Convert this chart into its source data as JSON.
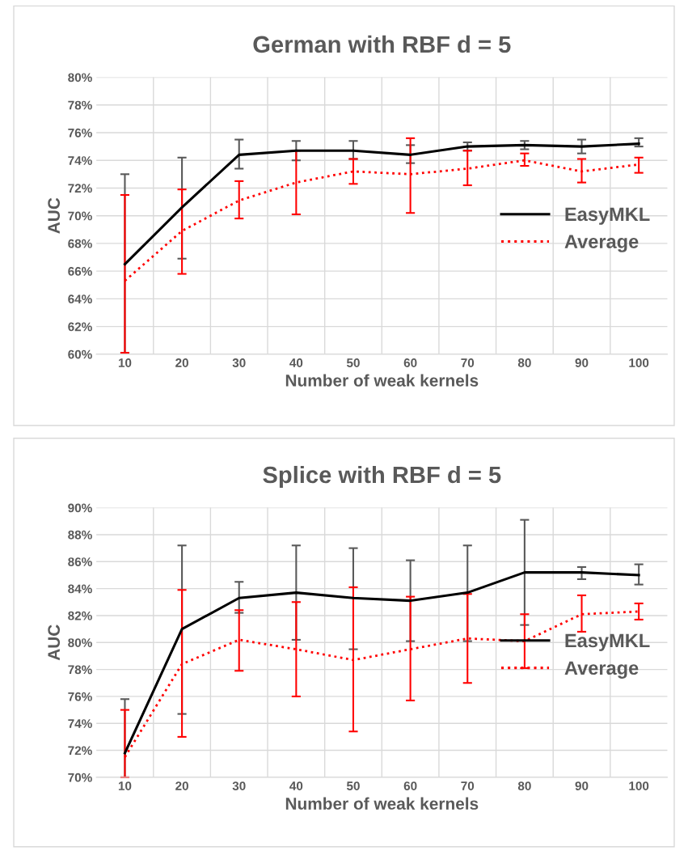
{
  "chart_data": [
    {
      "type": "line",
      "title": "German with RBF d = 5",
      "xlabel": "Number of weak kernels",
      "ylabel": "AUC",
      "categories": [
        "10",
        "20",
        "30",
        "40",
        "50",
        "60",
        "70",
        "80",
        "90",
        "100"
      ],
      "ylim": [
        60,
        80
      ],
      "yticks": [
        {
          "value": 60,
          "label": "60%"
        },
        {
          "value": 62,
          "label": "62%"
        },
        {
          "value": 64,
          "label": "64%"
        },
        {
          "value": 66,
          "label": "66%"
        },
        {
          "value": 68,
          "label": "68%"
        },
        {
          "value": 70,
          "label": "70%"
        },
        {
          "value": 72,
          "label": "72%"
        },
        {
          "value": 74,
          "label": "74%"
        },
        {
          "value": 76,
          "label": "76%"
        },
        {
          "value": 78,
          "label": "78%"
        },
        {
          "value": 80,
          "label": "80%"
        }
      ],
      "grid": true,
      "legend": "right",
      "marker": "none",
      "series": [
        {
          "name": "EasyMKL",
          "color": "#000000",
          "line_style": "solid",
          "values": [
            66.5,
            70.6,
            74.4,
            74.7,
            74.7,
            74.4,
            75.0,
            75.1,
            75.0,
            75.2
          ],
          "errors": [
            [
              60.1,
              73.0
            ],
            [
              66.9,
              74.2
            ],
            [
              73.4,
              75.5
            ],
            [
              74.0,
              75.4
            ],
            [
              74.1,
              75.4
            ],
            [
              73.8,
              75.1
            ],
            [
              74.7,
              75.3
            ],
            [
              74.8,
              75.4
            ],
            [
              74.5,
              75.5
            ],
            [
              75.0,
              75.6
            ]
          ]
        },
        {
          "name": "Average",
          "color": "#ff0000",
          "line_style": "dotted",
          "values": [
            65.3,
            68.9,
            71.1,
            72.4,
            73.2,
            73.0,
            73.4,
            74.0,
            73.2,
            73.7
          ],
          "errors": [
            [
              60.1,
              71.5
            ],
            [
              65.8,
              71.9
            ],
            [
              69.8,
              72.5
            ],
            [
              70.1,
              74.7
            ],
            [
              72.3,
              74.1
            ],
            [
              70.2,
              75.6
            ],
            [
              72.2,
              74.7
            ],
            [
              73.6,
              74.5
            ],
            [
              72.4,
              74.1
            ],
            [
              73.1,
              74.2
            ]
          ]
        }
      ]
    },
    {
      "type": "line",
      "title": "Splice with RBF d = 5",
      "xlabel": "Number of weak kernels",
      "ylabel": "AUC",
      "categories": [
        "10",
        "20",
        "30",
        "40",
        "50",
        "60",
        "70",
        "80",
        "90",
        "100"
      ],
      "ylim": [
        70,
        90
      ],
      "yticks": [
        {
          "value": 70,
          "label": "70%"
        },
        {
          "value": 72,
          "label": "72%"
        },
        {
          "value": 74,
          "label": "74%"
        },
        {
          "value": 76,
          "label": "76%"
        },
        {
          "value": 78,
          "label": "78%"
        },
        {
          "value": 80,
          "label": "80%"
        },
        {
          "value": 82,
          "label": "82%"
        },
        {
          "value": 84,
          "label": "84%"
        },
        {
          "value": 86,
          "label": "86%"
        },
        {
          "value": 88,
          "label": "88%"
        },
        {
          "value": 90,
          "label": "90%"
        }
      ],
      "grid": true,
      "legend": "right",
      "marker": "none",
      "series": [
        {
          "name": "EasyMKL",
          "color": "#000000",
          "line_style": "solid",
          "values": [
            71.8,
            81.0,
            83.3,
            83.7,
            83.3,
            83.1,
            83.7,
            85.2,
            85.2,
            85.0
          ],
          "errors": [
            [
              70.0,
              75.8
            ],
            [
              74.7,
              87.2
            ],
            [
              82.2,
              84.5
            ],
            [
              80.2,
              87.2
            ],
            [
              79.5,
              87.0
            ],
            [
              80.1,
              86.1
            ],
            [
              80.1,
              87.2
            ],
            [
              81.3,
              89.1
            ],
            [
              84.7,
              85.6
            ],
            [
              84.3,
              85.8
            ]
          ]
        },
        {
          "name": "Average",
          "color": "#ff0000",
          "line_style": "dotted",
          "values": [
            71.5,
            78.4,
            80.2,
            79.5,
            78.7,
            79.5,
            80.3,
            80.1,
            82.1,
            82.3
          ],
          "errors": [
            [
              70.0,
              75.0
            ],
            [
              73.0,
              83.9
            ],
            [
              77.9,
              82.4
            ],
            [
              76.0,
              83.0
            ],
            [
              73.4,
              84.1
            ],
            [
              75.7,
              83.4
            ],
            [
              77.0,
              83.6
            ],
            [
              78.1,
              82.1
            ],
            [
              80.8,
              83.5
            ],
            [
              81.7,
              82.9
            ]
          ]
        }
      ]
    }
  ]
}
